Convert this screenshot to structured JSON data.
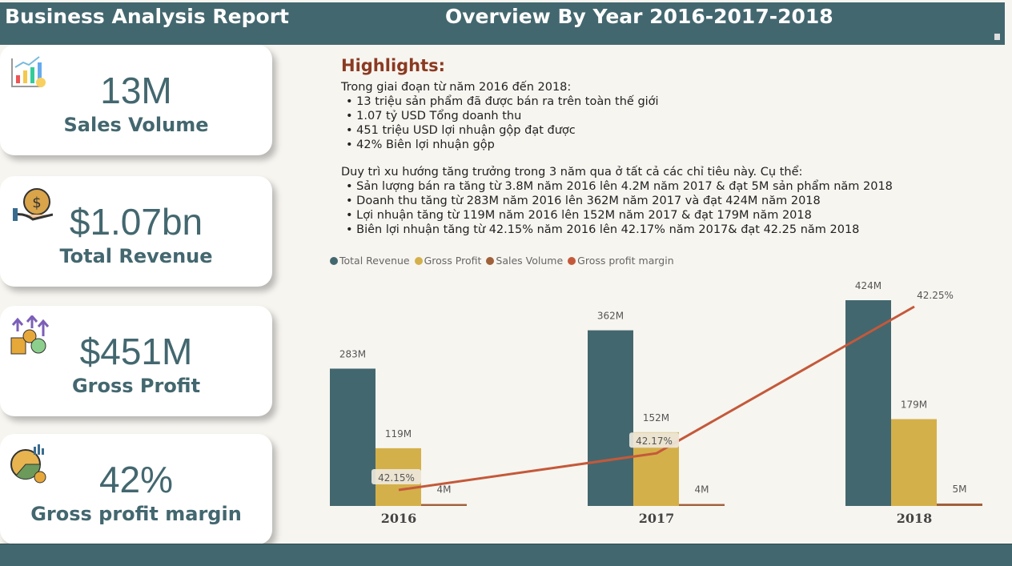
{
  "header": {
    "title": "Business Analysis Report",
    "subtitle": "Overview By Year 2016-2017-2018"
  },
  "cards": [
    {
      "value": "13M",
      "label": "Sales Volume",
      "icon": "chart-growth-icon"
    },
    {
      "value": "$1.07bn",
      "label": "Total Revenue",
      "icon": "money-bag-hand-icon"
    },
    {
      "value": "$451M",
      "label": "Gross Profit",
      "icon": "coins-growth-icon"
    },
    {
      "value": "42%",
      "label": "Gross profit margin",
      "icon": "pie-chart-percent-icon"
    }
  ],
  "highlights": {
    "title": "Highlights:",
    "intro": "Trong giai đoạn từ năm 2016 đến 2018:",
    "points": [
      "• 13 triệu sản phẩm đã được bán ra trên toàn thế giới",
      "• 1.07 tỷ USD Tổng doanh thu",
      "• 451 triệu USD lợi nhuận gộp đạt được",
      "• 42% Biên lợi nhuận gộp"
    ],
    "trend_intro": "Duy trì xu hướng tăng trưởng trong 3 năm qua ở tất cả các chỉ tiêu này. Cụ thể:",
    "trend_points": [
      "• Sản lượng bán ra tăng từ 3.8M năm 2016 lên 4.2M năm 2017 & đạt 5M sản phẩm năm 2018",
      "• Doanh thu tăng từ 283M năm 2016 lên 362M năm 2017 và đạt 424M năm 2018",
      "• Lợi nhuận tăng từ 119M năm 2016 lên 152M năm 2017 & đạt 179M năm 2018",
      "• Biên lợi nhuận tăng từ 42.15% năm 2016 lên 42.17% năm 2017& đạt 42.25 năm 2018"
    ]
  },
  "chart_data": {
    "type": "bar",
    "categories": [
      "2016",
      "2017",
      "2018"
    ],
    "legend_position": "top-left",
    "grid": false,
    "series": [
      {
        "name": "Total Revenue",
        "values": [
          283,
          362,
          424
        ],
        "labels": [
          "283M",
          "362M",
          "424M"
        ],
        "color": "#43676f"
      },
      {
        "name": "Gross Profit",
        "values": [
          119,
          152,
          179
        ],
        "labels": [
          "119M",
          "152M",
          "179M"
        ],
        "color": "#d4b04a"
      },
      {
        "name": "Sales Volume",
        "values": [
          4,
          4,
          5
        ],
        "labels": [
          "4M",
          "4M",
          "5M"
        ],
        "color": "#a0603a"
      },
      {
        "name": "Gross profit margin",
        "type": "line",
        "values": [
          42.15,
          42.17,
          42.25
        ],
        "labels": [
          "42.15%",
          "42.17%",
          "42.25%"
        ],
        "color": "#c4593a"
      }
    ]
  }
}
